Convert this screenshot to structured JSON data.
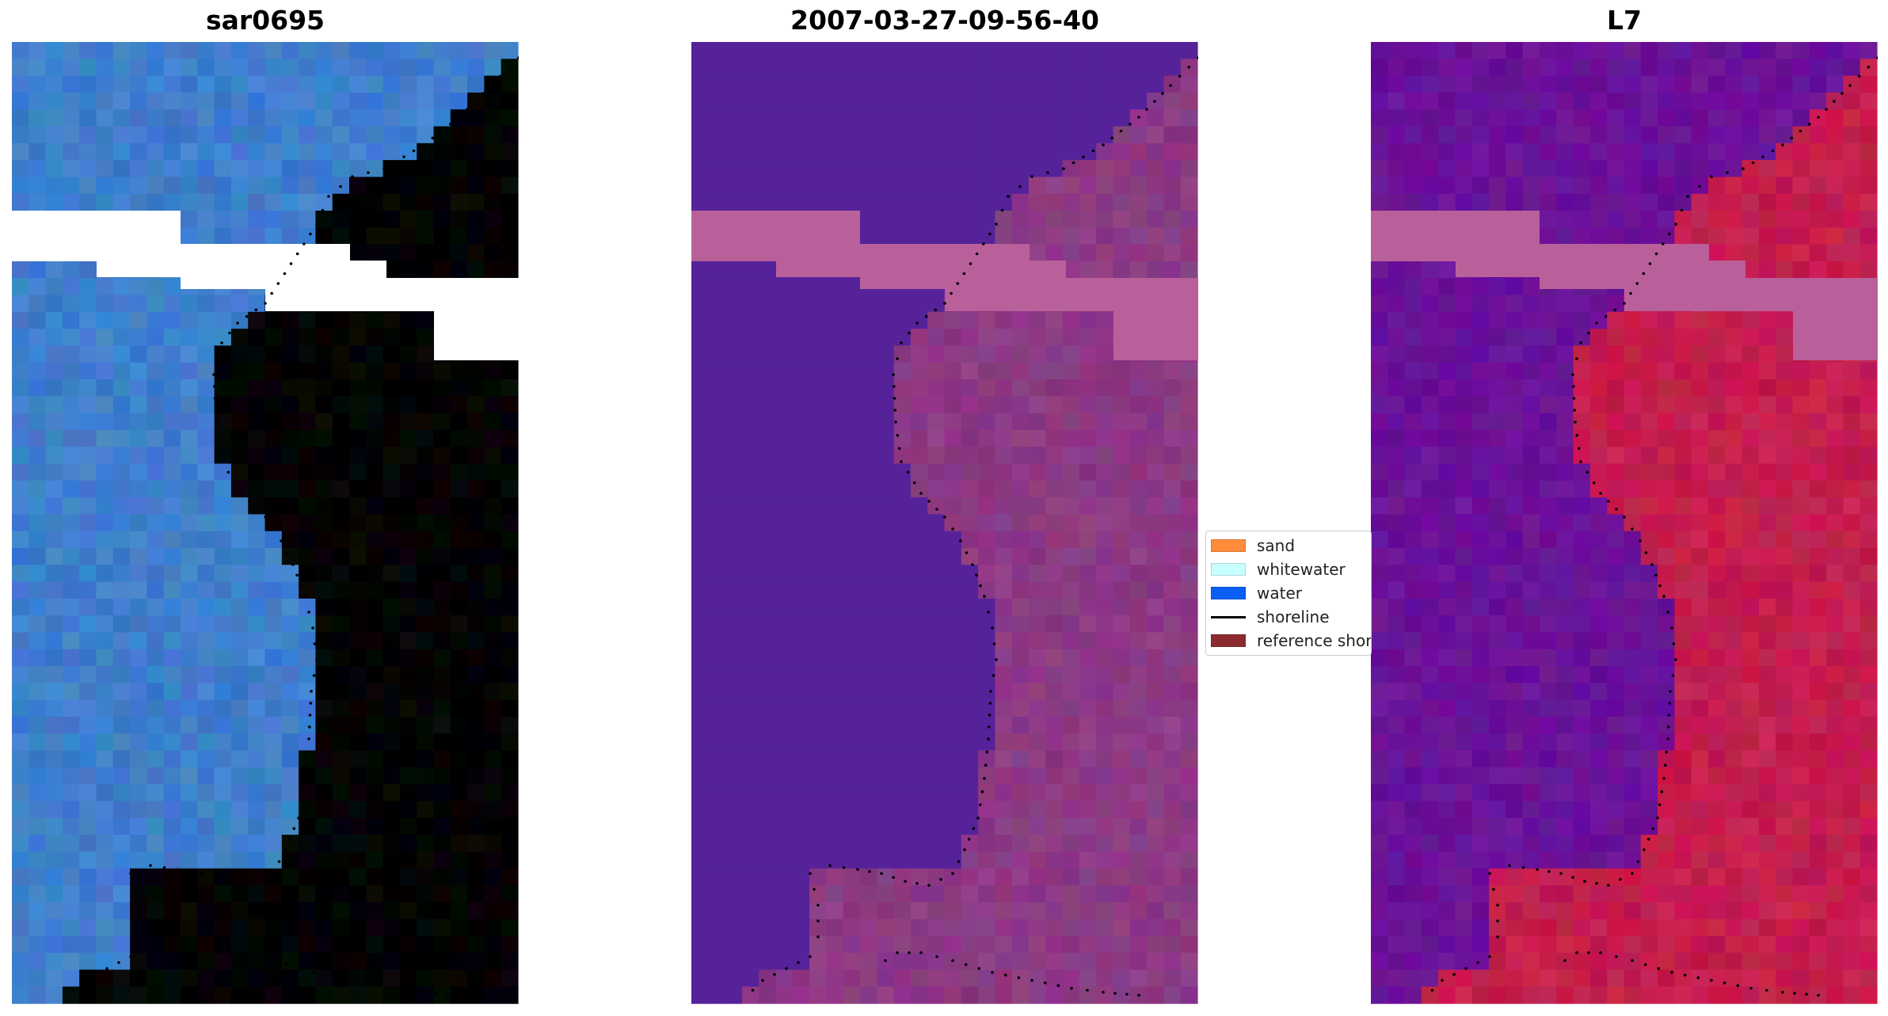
{
  "panels": [
    {
      "title": "sar0695",
      "kind": "rgb"
    },
    {
      "title": "2007-03-27-09-56-40",
      "kind": "classified"
    },
    {
      "title": "L7",
      "kind": "index"
    }
  ],
  "legend": {
    "items": [
      {
        "label": "sand",
        "color": "#ff8c3a",
        "type": "patch"
      },
      {
        "label": "whitewater",
        "color": "#c8ffff",
        "type": "patch"
      },
      {
        "label": "water",
        "color": "#0a5ef5",
        "type": "patch"
      },
      {
        "label": "shoreline",
        "color": "#000000",
        "type": "line"
      },
      {
        "label": "reference shoreline",
        "color": "#8b2b2f",
        "type": "patch"
      }
    ]
  },
  "colors": {
    "rgb_water": "#3f7fcc",
    "rgb_land": "#8fa8d8",
    "class_water": "#55229a",
    "class_land": "#8c3a84",
    "index_water": "#6a1299",
    "index_land": "#c41e4e",
    "cloud_mask_overlay": "#b9609a",
    "shoreline_dots": "#000000"
  }
}
